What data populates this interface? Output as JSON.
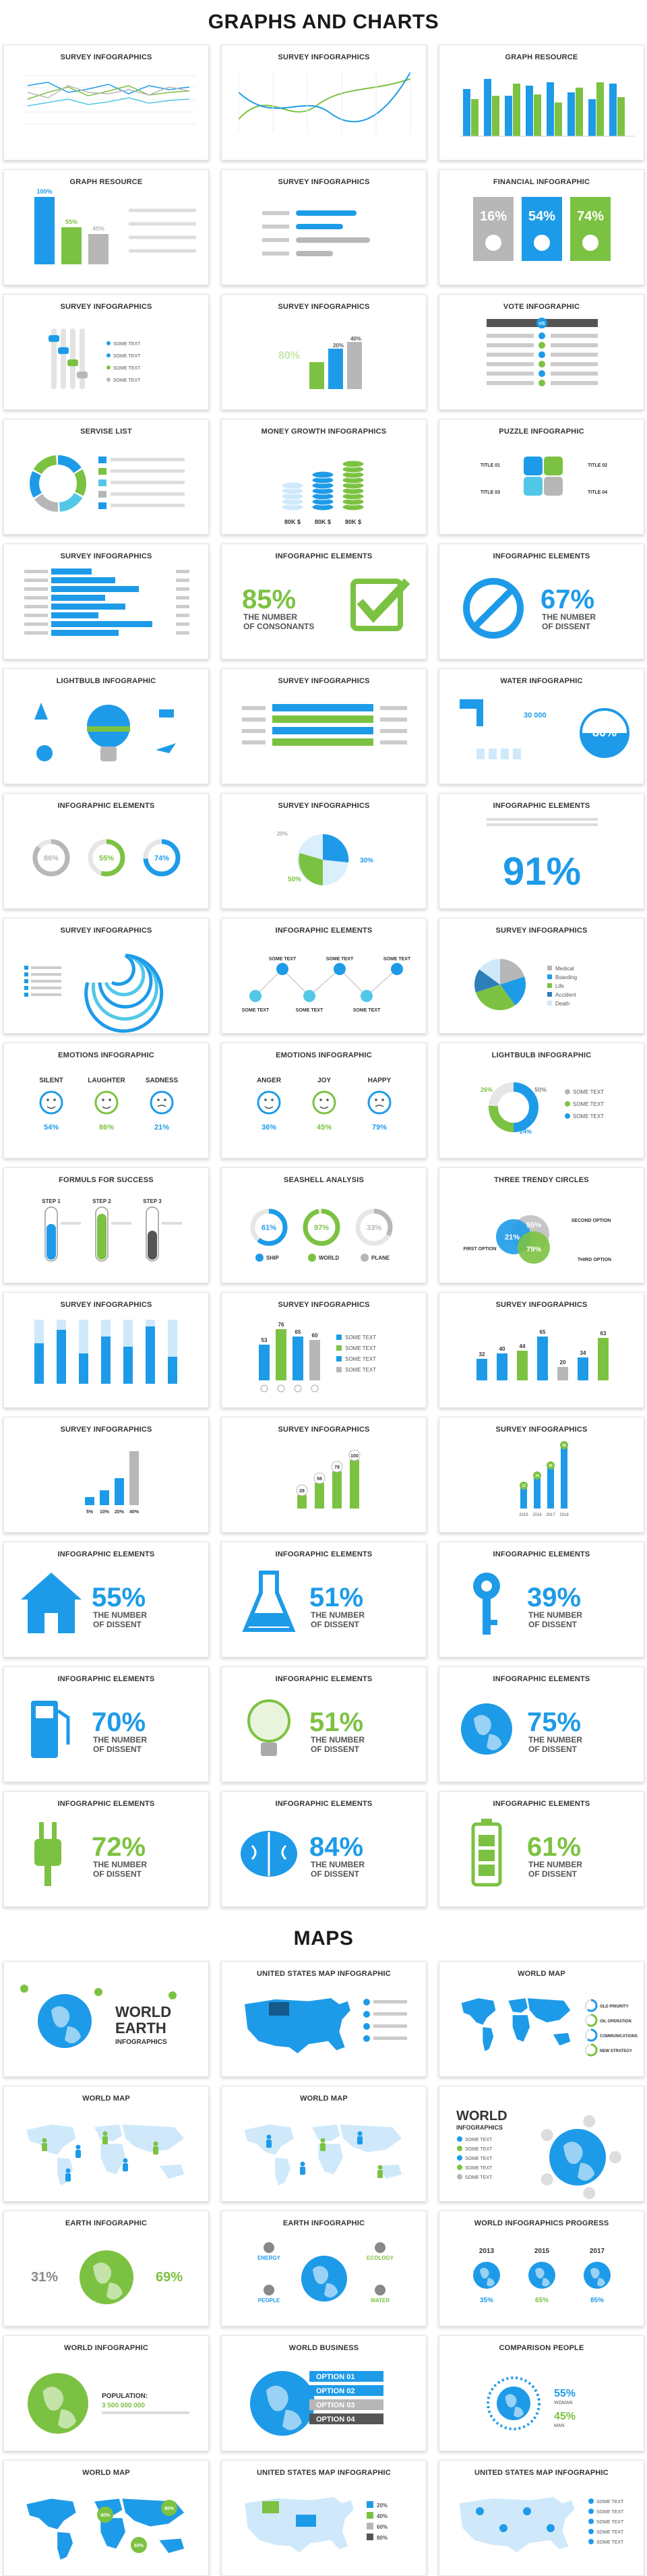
{
  "sections": {
    "charts_title": "GRAPHS AND CHARTS",
    "maps_title": "MAPS"
  },
  "cards": [
    {
      "title": "SURVEY INFOGRAPHICS",
      "kind": "line-multi"
    },
    {
      "title": "SURVEY INFOGRAPHICS",
      "kind": "line-curves"
    },
    {
      "title": "GRAPH RESOURCE",
      "kind": "bar-pairs"
    },
    {
      "title": "GRAPH RESOURCE",
      "kind": "bar-3",
      "labels": [
        "100%",
        "55%",
        "45%"
      ]
    },
    {
      "title": "SURVEY INFOGRAPHICS",
      "kind": "hbars"
    },
    {
      "title": "FINANCIAL INFOGRAPHIC",
      "kind": "finance",
      "labels": [
        "16%",
        "54%",
        "74%"
      ]
    },
    {
      "title": "SURVEY INFOGRAPHICS",
      "kind": "sliders",
      "labels": [
        "SOME TEXT",
        "SOME TEXT",
        "SOME TEXT",
        "SOME TEXT"
      ]
    },
    {
      "title": "SURVEY INFOGRAPHICS",
      "kind": "bar-3b",
      "labels": [
        "80%",
        "20%",
        "40%"
      ]
    },
    {
      "title": "VOTE INFOGRAPHIC",
      "kind": "vote",
      "labels": [
        "VS"
      ]
    },
    {
      "title": "SERVISE LIST",
      "kind": "ring-list"
    },
    {
      "title": "MONEY GROWTH INFOGRAPHICS",
      "kind": "coins",
      "labels": [
        "80K $",
        "80K $",
        "80K $"
      ]
    },
    {
      "title": "PUZZLE  INFOGRAPHIC",
      "kind": "puzzle",
      "labels": [
        "TITLE 01",
        "TITLE 02",
        "TITLE 03",
        "TITLE 04"
      ]
    },
    {
      "title": "SURVEY INFOGRAPHICS",
      "kind": "hbars-long"
    },
    {
      "title": "INFOGRAPHIC ELEMENTS",
      "kind": "check",
      "big": "85%",
      "sub1": "THE NUMBER",
      "sub2": "OF CONSONANTS"
    },
    {
      "title": "INFOGRAPHIC ELEMENTS",
      "kind": "nosign",
      "big": "67%",
      "sub1": "THE NUMBER",
      "sub2": "OF DISSENT"
    },
    {
      "title": "LIGHTBULB INFOGRAPHIC",
      "kind": "bulb"
    },
    {
      "title": "SURVEY INFOGRAPHICS",
      "kind": "stripes"
    },
    {
      "title": "WATER INFOGRAPHIC",
      "kind": "water",
      "labels": [
        "80%",
        "30 000"
      ]
    },
    {
      "title": "INFOGRAPHIC ELEMENTS",
      "kind": "rings-3",
      "labels": [
        "86%",
        "55%",
        "74%"
      ]
    },
    {
      "title": "SURVEY INFOGRAPHICS",
      "kind": "pie-2",
      "labels": [
        "20%",
        "30%",
        "50%"
      ]
    },
    {
      "title": "INFOGRAPHIC ELEMENTS",
      "kind": "big91",
      "big": "91%"
    },
    {
      "title": "SURVEY INFOGRAPHICS",
      "kind": "arcs"
    },
    {
      "title": "INFOGRAPHIC ELEMENTS",
      "kind": "nodes",
      "labels": [
        "SOME TEXT",
        "SOME TEXT",
        "SOME TEXT",
        "SOME TEXT",
        "SOME TEXT",
        "SOME TEXT"
      ]
    },
    {
      "title": "SURVEY INFOGRAPHICS",
      "kind": "pie-legend",
      "labels": [
        "Medical",
        "Boarding",
        "Life",
        "Accident",
        "Death"
      ]
    },
    {
      "title": "EMOTIONS INFOGRAPHIC",
      "kind": "emotions",
      "labels": [
        "SILENT",
        "LAUGHTER",
        "SADNESS"
      ],
      "values": [
        "54%",
        "86%",
        "21%"
      ]
    },
    {
      "title": "EMOTIONS INFOGRAPHIC",
      "kind": "emotions",
      "labels": [
        "ANGER",
        "JOY",
        "HAPPY"
      ],
      "values": [
        "36%",
        "45%",
        "79%"
      ]
    },
    {
      "title": "LIGHTBULB INFOGRAPHIC",
      "kind": "donut-list",
      "labels": [
        "SOME TEXT",
        "SOME TEXT",
        "SOME TEXT"
      ],
      "values": [
        "26%",
        "50%",
        "24%"
      ]
    },
    {
      "title": "FORMULS FOR SUCCESS",
      "kind": "tubes",
      "labels": [
        "STEP 1",
        "STEP 2",
        "STEP 3"
      ]
    },
    {
      "title": "SEASHELL ANALYSIS",
      "kind": "rings-labels",
      "labels": [
        "SHIP",
        "WORLD",
        "PLANE"
      ],
      "values": [
        "61%",
        "97%",
        "33%"
      ]
    },
    {
      "title": "THREE TRENDY CIRCLES",
      "kind": "venn",
      "labels": [
        "FIRST OPTION",
        "SECOND OPTION",
        "THIRD OPTION"
      ],
      "values": [
        "21%",
        "55%",
        "79%"
      ]
    },
    {
      "title": "SURVEY INFOGRAPHICS",
      "kind": "vbars-pairs"
    },
    {
      "title": "SURVEY INFOGRAPHICS",
      "kind": "vbars-legend",
      "values": [
        "53",
        "76",
        "65",
        "60"
      ],
      "labels": [
        "SOME TEXT",
        "SOME TEXT",
        "SOME TEXT",
        "SOME TEXT"
      ]
    },
    {
      "title": "SURVEY INFOGRAPHICS",
      "kind": "vbars-mixed",
      "values": [
        "32",
        "40",
        "44",
        "65",
        "20",
        "34",
        "63"
      ]
    },
    {
      "title": "SURVEY INFOGRAPHICS",
      "kind": "vbars-steps",
      "values": [
        "5%",
        "10%",
        "20%",
        "40%"
      ]
    },
    {
      "title": "SURVEY INFOGRAPHICS",
      "kind": "vbars-dots",
      "values": [
        "29",
        "56",
        "79",
        "100"
      ]
    },
    {
      "title": "SURVEY INFOGRAPHICS",
      "kind": "vbars-thin",
      "values": [
        "12",
        "24",
        "36",
        "48"
      ],
      "labels": [
        "2015",
        "2016",
        "2017",
        "2018"
      ]
    },
    {
      "title": "INFOGRAPHIC ELEMENTS",
      "kind": "icon-house",
      "big": "55%",
      "sub1": "THE NUMBER",
      "sub2": "OF DISSENT"
    },
    {
      "title": "INFOGRAPHIC ELEMENTS",
      "kind": "icon-flask",
      "big": "51%",
      "sub1": "THE NUMBER",
      "sub2": "OF DISSENT"
    },
    {
      "title": "INFOGRAPHIC ELEMENTS",
      "kind": "icon-key",
      "big": "39%",
      "sub1": "THE NUMBER",
      "sub2": "OF DISSENT"
    },
    {
      "title": "INFOGRAPHIC ELEMENTS",
      "kind": "icon-pump",
      "big": "70%",
      "sub1": "THE NUMBER",
      "sub2": "OF DISSENT"
    },
    {
      "title": "INFOGRAPHIC ELEMENTS",
      "kind": "icon-bulb",
      "big": "51%",
      "sub1": "THE NUMBER",
      "sub2": "OF DISSENT"
    },
    {
      "title": "INFOGRAPHIC ELEMENTS",
      "kind": "icon-globe",
      "big": "75%",
      "sub1": "THE NUMBER",
      "sub2": "OF DISSENT"
    },
    {
      "title": "INFOGRAPHIC ELEMENTS",
      "kind": "icon-plug",
      "big": "72%",
      "sub1": "THE NUMBER",
      "sub2": "OF DISSENT"
    },
    {
      "title": "INFOGRAPHIC ELEMENTS",
      "kind": "icon-brain",
      "big": "84%",
      "sub1": "THE NUMBER",
      "sub2": "OF DISSENT"
    },
    {
      "title": "INFOGRAPHIC ELEMENTS",
      "kind": "icon-battery",
      "big": "61%",
      "sub1": "THE NUMBER",
      "sub2": "OF DISSENT"
    }
  ],
  "map_cards": [
    {
      "title": "",
      "kind": "map-world-earth",
      "labels": [
        "WORLD",
        "EARTH",
        "INFOGRAPHICS"
      ]
    },
    {
      "title": "UNITED STATES MAP INFOGRAPHIC",
      "kind": "map-us"
    },
    {
      "title": "WORLD MAP",
      "kind": "map-world-legend",
      "labels": [
        "OLD PRIORITY",
        "OIL OPERATION",
        "COMMUNICATIONS",
        "NEW STRATEGY"
      ]
    },
    {
      "title": "WORLD MAP",
      "kind": "map-people"
    },
    {
      "title": "WORLD MAP",
      "kind": "map-people-2"
    },
    {
      "title": "",
      "kind": "map-world-info",
      "labels": [
        "WORLD",
        "INFOGRAPHICS",
        "SOME TEXT",
        "SOME TEXT",
        "SOME TEXT",
        "SOME TEXT",
        "SOME TEXT"
      ]
    },
    {
      "title": "EARTH  INFOGRAPHIC",
      "kind": "map-earth-pct",
      "values": [
        "31%",
        "69%"
      ]
    },
    {
      "title": "EARTH  INFOGRAPHIC",
      "kind": "map-earth-icons",
      "labels": [
        "ENERGY",
        "ECOLOGY",
        "PEOPLE",
        "WATER"
      ]
    },
    {
      "title": "WORLD INFOGRAPHICS PROGRESS",
      "kind": "map-progress",
      "labels": [
        "2013",
        "2015",
        "2017"
      ],
      "values": [
        "35%",
        "65%",
        "85%"
      ]
    },
    {
      "title": "WORLD INFOGRAPHIC",
      "kind": "map-population",
      "labels": [
        "POPULATION:",
        "3 500 000 000"
      ]
    },
    {
      "title": "WORLD BUSINESS",
      "kind": "map-business",
      "labels": [
        "OPTION 01",
        "OPTION 02",
        "OPTION 03",
        "OPTION 04"
      ]
    },
    {
      "title": "COMPARISON PEOPLE",
      "kind": "map-comparison",
      "labels": [
        "WOMAN",
        "MAN"
      ],
      "values": [
        "55%",
        "45%"
      ]
    },
    {
      "title": "WORLD MAP",
      "kind": "map-world-pct",
      "values": [
        "40%",
        "80%",
        "60%"
      ]
    },
    {
      "title": "UNITED STATES MAP INFOGRAPHIC",
      "kind": "map-us-2",
      "labels": [
        "20%",
        "40%",
        "60%",
        "80%"
      ]
    },
    {
      "title": "UNITED STATES MAP INFOGRAPHIC",
      "kind": "map-us-3",
      "labels": [
        "SOME TEXT",
        "SOME TEXT",
        "SOME TEXT",
        "SOME TEXT",
        "SOME TEXT"
      ]
    }
  ],
  "colors": {
    "blue": "#1e9be8",
    "green": "#7cc242",
    "gray": "#b7b7b7",
    "dark": "#555555",
    "light_blue": "#cfe9fb"
  }
}
